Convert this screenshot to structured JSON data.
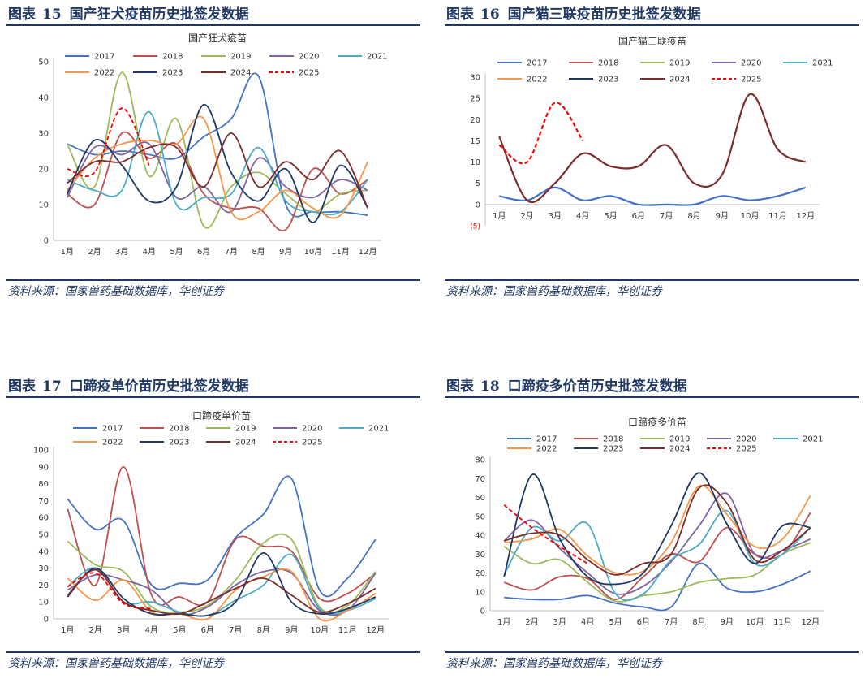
{
  "figures": [
    {
      "fig_label": "图表",
      "fig_number": "15",
      "fig_title": "国产狂犬疫苗历史批签发数据",
      "source": "资料来源：国家兽药基础数据库，华创证券"
    },
    {
      "fig_label": "图表",
      "fig_number": "16",
      "fig_title": "国产猫三联疫苗历史批签发数据",
      "source": "资料来源：国家兽药基础数据库，华创证券"
    },
    {
      "fig_label": "图表",
      "fig_number": "17",
      "fig_title": "口蹄疫单价苗历史批签发数据",
      "source": "资料来源：国家兽药基础数据库，华创证券"
    },
    {
      "fig_label": "图表",
      "fig_number": "18",
      "fig_title": "口蹄疫多价苗历史批签发数据",
      "source": "资料来源：国家兽药基础数据库，华创证券"
    }
  ],
  "series_colors": {
    "2017": "#4472c4",
    "2018": "#c0504d",
    "2019": "#9bbb59",
    "2020": "#8064a2",
    "2021": "#4bacc6",
    "2022": "#f79646",
    "2023": "#1f3864",
    "2024": "#7b2c2c",
    "2025": "#ff0000"
  },
  "chart_data": [
    {
      "type": "line",
      "title": "国产狂犬疫苗",
      "categories": [
        "1月",
        "2月",
        "3月",
        "4月",
        "5月",
        "6月",
        "7月",
        "8月",
        "9月",
        "10月",
        "11月",
        "12月"
      ],
      "ylim": [
        0,
        50
      ],
      "yticks": [
        0,
        10,
        20,
        30,
        40,
        50
      ],
      "series": [
        {
          "name": "2017",
          "values": [
            27,
            24,
            25,
            24,
            23,
            29,
            34,
            46,
            10,
            8,
            8,
            7
          ]
        },
        {
          "name": "2018",
          "values": [
            13,
            10,
            30,
            23,
            27,
            13,
            9,
            9,
            3,
            20,
            13,
            17
          ]
        },
        {
          "name": "2019",
          "values": [
            27,
            15,
            47,
            18,
            34,
            4,
            15,
            19,
            13,
            8,
            13,
            14
          ]
        },
        {
          "name": "2020",
          "values": [
            12,
            26,
            24,
            27,
            12,
            15,
            8,
            23,
            15,
            12,
            17,
            14
          ]
        },
        {
          "name": "2021",
          "values": [
            17,
            14,
            14,
            36,
            10,
            12,
            13,
            26,
            11,
            8,
            8,
            17
          ]
        },
        {
          "name": "2022",
          "values": [
            14,
            23,
            27,
            28,
            27,
            34,
            8,
            8,
            14,
            9,
            7,
            22
          ]
        },
        {
          "name": "2023",
          "values": [
            13,
            28,
            21,
            11,
            15,
            38,
            19,
            11,
            20,
            5,
            21,
            9
          ]
        },
        {
          "name": "2024",
          "values": [
            16,
            22,
            22,
            26,
            26,
            15,
            30,
            15,
            22,
            17,
            25,
            9
          ]
        },
        {
          "name": "2025",
          "values": [
            20,
            19,
            37,
            21,
            null,
            null,
            null,
            null,
            null,
            null,
            null,
            null
          ]
        }
      ]
    },
    {
      "type": "line",
      "title": "国产猫三联疫苗",
      "categories": [
        "1月",
        "2月",
        "3月",
        "4月",
        "5月",
        "6月",
        "7月",
        "8月",
        "9月",
        "10月",
        "11月",
        "12月"
      ],
      "ylim": [
        -5,
        30
      ],
      "yticks": [
        0,
        5,
        10,
        15,
        20,
        25,
        30
      ],
      "ytick_negative_label": "(5)",
      "series": [
        {
          "name": "2017",
          "values": [
            2,
            1,
            4,
            1,
            2,
            0,
            0,
            0,
            2,
            1,
            2,
            4
          ]
        },
        {
          "name": "2018",
          "values": [
            null,
            null,
            null,
            null,
            null,
            null,
            null,
            null,
            null,
            null,
            null,
            null
          ]
        },
        {
          "name": "2019",
          "values": [
            null,
            null,
            null,
            null,
            null,
            null,
            null,
            null,
            null,
            null,
            null,
            null
          ]
        },
        {
          "name": "2020",
          "values": [
            null,
            null,
            null,
            null,
            null,
            null,
            null,
            null,
            null,
            null,
            null,
            null
          ]
        },
        {
          "name": "2021",
          "values": [
            null,
            null,
            null,
            null,
            null,
            null,
            null,
            null,
            null,
            null,
            null,
            null
          ]
        },
        {
          "name": "2022",
          "values": [
            null,
            null,
            null,
            null,
            null,
            null,
            null,
            null,
            null,
            null,
            null,
            null
          ]
        },
        {
          "name": "2023",
          "values": [
            null,
            null,
            null,
            null,
            null,
            null,
            null,
            null,
            null,
            null,
            null,
            null
          ]
        },
        {
          "name": "2024",
          "values": [
            16,
            1,
            5,
            12,
            9,
            9,
            14,
            5,
            7,
            26,
            13,
            10
          ]
        },
        {
          "name": "2025",
          "values": [
            14,
            10,
            24,
            15,
            null,
            null,
            null,
            null,
            null,
            null,
            null,
            null
          ]
        }
      ]
    },
    {
      "type": "line",
      "title": "口蹄疫单价苗",
      "categories": [
        "1月",
        "2月",
        "3月",
        "4月",
        "5月",
        "6月",
        "7月",
        "8月",
        "9月",
        "10月",
        "11月",
        "12月"
      ],
      "ylim": [
        0,
        100
      ],
      "yticks": [
        0,
        10,
        20,
        30,
        40,
        50,
        60,
        70,
        80,
        90,
        100
      ],
      "series": [
        {
          "name": "2017",
          "values": [
            71,
            53,
            58,
            20,
            21,
            23,
            48,
            62,
            83,
            17,
            24,
            47
          ]
        },
        {
          "name": "2018",
          "values": [
            65,
            20,
            90,
            14,
            13,
            10,
            47,
            43,
            40,
            12,
            15,
            27
          ]
        },
        {
          "name": "2019",
          "values": [
            46,
            32,
            28,
            7,
            4,
            8,
            23,
            45,
            47,
            7,
            8,
            28
          ]
        },
        {
          "name": "2020",
          "values": [
            17,
            26,
            23,
            17,
            3,
            7,
            20,
            28,
            27,
            5,
            5,
            27
          ]
        },
        {
          "name": "2021",
          "values": [
            19,
            30,
            10,
            10,
            4,
            2,
            11,
            20,
            38,
            6,
            5,
            12
          ]
        },
        {
          "name": "2022",
          "values": [
            24,
            11,
            23,
            4,
            3,
            0,
            17,
            25,
            28,
            0,
            5,
            15
          ]
        },
        {
          "name": "2023",
          "values": [
            13,
            30,
            12,
            3,
            3,
            2,
            10,
            39,
            10,
            3,
            6,
            13
          ]
        },
        {
          "name": "2024",
          "values": [
            14,
            29,
            10,
            5,
            3,
            10,
            18,
            24,
            14,
            4,
            9,
            18
          ]
        },
        {
          "name": "2025",
          "values": [
            19,
            27,
            9,
            6,
            null,
            null,
            null,
            null,
            null,
            null,
            null,
            null
          ]
        }
      ]
    },
    {
      "type": "line",
      "title": "口蹄疫多价苗",
      "categories": [
        "1月",
        "2月",
        "3月",
        "4月",
        "5月",
        "6月",
        "7月",
        "8月",
        "9月",
        "10月",
        "11月",
        "12月"
      ],
      "ylim": [
        0,
        80
      ],
      "yticks": [
        0,
        10,
        20,
        30,
        40,
        50,
        60,
        70,
        80
      ],
      "series": [
        {
          "name": "2017",
          "values": [
            7,
            6,
            6,
            8,
            4,
            2,
            2,
            25,
            12,
            10,
            14,
            21
          ]
        },
        {
          "name": "2018",
          "values": [
            15,
            11,
            18,
            17,
            6,
            18,
            30,
            26,
            44,
            30,
            30,
            52
          ]
        },
        {
          "name": "2019",
          "values": [
            34,
            25,
            27,
            15,
            5,
            8,
            10,
            15,
            17,
            19,
            30,
            36
          ]
        },
        {
          "name": "2020",
          "values": [
            37,
            48,
            33,
            20,
            9,
            13,
            26,
            45,
            62,
            30,
            32,
            38
          ]
        },
        {
          "name": "2021",
          "values": [
            19,
            44,
            37,
            46,
            9,
            9,
            27,
            35,
            53,
            25,
            30,
            44
          ]
        },
        {
          "name": "2022",
          "values": [
            36,
            38,
            43,
            29,
            20,
            21,
            36,
            66,
            51,
            34,
            38,
            61
          ]
        },
        {
          "name": "2023",
          "values": [
            18,
            72,
            38,
            18,
            14,
            20,
            45,
            73,
            46,
            25,
            45,
            44
          ]
        },
        {
          "name": "2024",
          "values": [
            37,
            41,
            40,
            27,
            19,
            25,
            30,
            65,
            57,
            27,
            32,
            44
          ]
        },
        {
          "name": "2025",
          "values": [
            56,
            44,
            34,
            25,
            null,
            null,
            null,
            null,
            null,
            null,
            null,
            null
          ]
        }
      ]
    }
  ]
}
